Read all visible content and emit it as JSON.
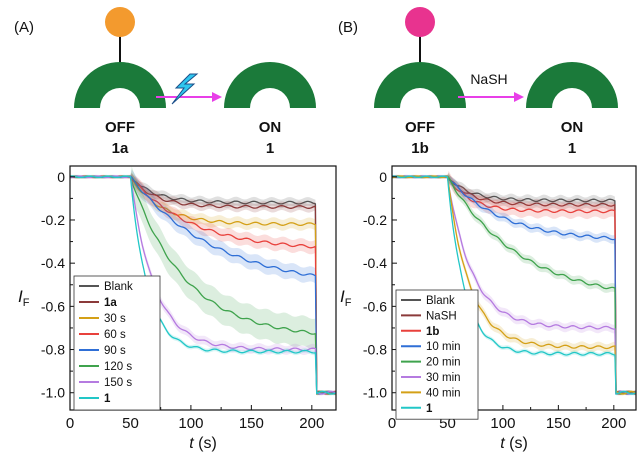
{
  "panels": [
    {
      "label": "(A)",
      "ball_color": "#f39a2e",
      "arrow_color": "#e83fe8",
      "trigger_icon": "lightning-bolt-icon",
      "trigger_color": "#2fc6ee",
      "trigger_text": "",
      "left_state": "OFF",
      "left_compound": "1a",
      "right_state": "ON",
      "right_compound": "1"
    },
    {
      "label": "(B)",
      "ball_color": "#e8338f",
      "arrow_color": "#e83fe8",
      "trigger_icon": "",
      "trigger_color": "",
      "trigger_text": "NaSH",
      "left_state": "OFF",
      "left_compound": "1b",
      "right_state": "ON",
      "right_compound": "1"
    }
  ],
  "ring_color": "#1b7a3a",
  "chart_data": [
    {
      "type": "line",
      "xlabel_italic": "t",
      "xlabel_unit": " (s)",
      "ylabel_main": "I",
      "ylabel_sub": "F",
      "xlim": [
        0,
        220
      ],
      "ylim": [
        -1.08,
        0.05
      ],
      "xticks": [
        0,
        50,
        100,
        150,
        200
      ],
      "yticks": [
        0,
        -0.2,
        -0.4,
        -0.6,
        -0.8,
        -1.0
      ],
      "ytick_labels": [
        "0",
        "-0.2",
        "-0.4",
        "-0.6",
        "-0.8",
        "-1.0"
      ],
      "drop_time": 204,
      "baseline_end": 50,
      "legend": "bottom-left",
      "series": [
        {
          "name": "Blank",
          "bold": false,
          "color": "#555555",
          "plateau": -0.12,
          "rate": 0.05,
          "slope": 0.0,
          "fast": 0.0,
          "band": 0.02
        },
        {
          "name": "1a",
          "bold": true,
          "color": "#8b3a3a",
          "plateau": -0.14,
          "rate": 0.05,
          "slope": 0.0,
          "fast": 0.0,
          "band": 0.02
        },
        {
          "name": "30 s",
          "bold": false,
          "color": "#d4a017",
          "plateau": -0.22,
          "rate": 0.04,
          "slope": 0.0,
          "fast": 0.0,
          "band": 0.025
        },
        {
          "name": "60 s",
          "bold": false,
          "color": "#e8413c",
          "plateau": -0.34,
          "rate": 0.02,
          "slope": 0.0,
          "fast": 0.0,
          "band": 0.03
        },
        {
          "name": "90 s",
          "bold": false,
          "color": "#2f6fd6",
          "plateau": -0.52,
          "rate": 0.014,
          "slope": 0.0,
          "fast": 0.0,
          "band": 0.035
        },
        {
          "name": "120 s",
          "bold": false,
          "color": "#3fa34d",
          "plateau": -0.75,
          "rate": 0.022,
          "slope": 0.0,
          "fast": 0.0,
          "band": 0.07
        },
        {
          "name": "150 s",
          "bold": false,
          "color": "#b57be0",
          "plateau": -0.8,
          "rate": 0.05,
          "slope": 0.0,
          "fast": 0.0,
          "band": 0.02
        },
        {
          "name": "1",
          "bold": true,
          "color": "#22c7c7",
          "plateau": -0.81,
          "rate": 0.07,
          "slope": 0.0,
          "fast": 0.0,
          "band": 0.01
        }
      ]
    },
    {
      "type": "line",
      "xlabel_italic": "t",
      "xlabel_unit": " (s)",
      "ylabel_main": "I",
      "ylabel_sub": "F",
      "xlim": [
        0,
        220
      ],
      "ylim": [
        -1.08,
        0.05
      ],
      "xticks": [
        0,
        50,
        100,
        150,
        200
      ],
      "yticks": [
        0,
        -0.2,
        -0.4,
        -0.6,
        -0.8,
        -1.0
      ],
      "ytick_labels": [
        "0",
        "-0.2",
        "-0.4",
        "-0.6",
        "-0.8",
        "-1.0"
      ],
      "drop_time": 202,
      "baseline_end": 50,
      "legend": "bottom-left",
      "series": [
        {
          "name": "Blank",
          "bold": false,
          "color": "#555555",
          "plateau": -0.11,
          "rate": 0.05,
          "slope": 0.0,
          "fast": 0.0,
          "band": 0.02
        },
        {
          "name": "NaSH",
          "bold": false,
          "color": "#8b3a3a",
          "plateau": -0.13,
          "rate": 0.05,
          "slope": 0.0,
          "fast": 0.0,
          "band": 0.02
        },
        {
          "name": "1b",
          "bold": true,
          "color": "#e8413c",
          "plateau": -0.16,
          "rate": 0.05,
          "slope": 0.0,
          "fast": 0.0,
          "band": 0.03
        },
        {
          "name": "10 min",
          "bold": false,
          "color": "#2f6fd6",
          "plateau": -0.3,
          "rate": 0.02,
          "slope": 0.0,
          "fast": 0.0,
          "band": 0.02
        },
        {
          "name": "20 min",
          "bold": false,
          "color": "#3fa34d",
          "plateau": -0.58,
          "rate": 0.015,
          "slope": 0.0,
          "fast": 0.0,
          "band": 0.02
        },
        {
          "name": "30 min",
          "bold": false,
          "color": "#b57be0",
          "plateau": -0.7,
          "rate": 0.045,
          "slope": 0.0,
          "fast": 0.0,
          "band": 0.02
        },
        {
          "name": "40 min",
          "bold": false,
          "color": "#d4a017",
          "plateau": -0.79,
          "rate": 0.05,
          "slope": 0.0,
          "fast": 0.0,
          "band": 0.02
        },
        {
          "name": "1",
          "bold": true,
          "color": "#22c7c7",
          "plateau": -0.82,
          "rate": 0.065,
          "slope": 0.0,
          "fast": 0.0,
          "band": 0.01
        }
      ]
    }
  ]
}
